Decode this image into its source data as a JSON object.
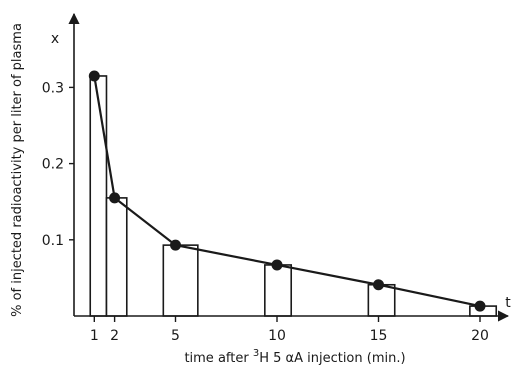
{
  "chart_data": {
    "type": "bar",
    "title": "",
    "xlabel_parts": {
      "before": "time after ",
      "superscript": "3",
      "after": "H 5 αA injection (min.)"
    },
    "ylabel": "% of injected radioactivity per liter of plasma",
    "x_axis_letter": "t",
    "y_axis_letter": "x",
    "x_ticks": [
      1,
      2,
      5,
      10,
      15,
      20
    ],
    "x_tick_labels": [
      "1",
      "2",
      "5",
      "10",
      "15",
      "20"
    ],
    "y_ticks": [
      0.1,
      0.2,
      0.3
    ],
    "y_tick_labels": [
      "0.1",
      "0.2",
      "0.3"
    ],
    "xlim": [
      0,
      22.5
    ],
    "ylim": [
      0,
      0.36
    ],
    "bars": [
      {
        "x_start": 0.8,
        "x_end": 1.6,
        "value": 0.315
      },
      {
        "x_start": 1.6,
        "x_end": 2.6,
        "value": 0.155
      },
      {
        "x_start": 4.4,
        "x_end": 6.1,
        "value": 0.093
      },
      {
        "x_start": 9.4,
        "x_end": 10.7,
        "value": 0.067
      },
      {
        "x_start": 14.5,
        "x_end": 15.8,
        "value": 0.041
      },
      {
        "x_start": 19.5,
        "x_end": 20.8,
        "value": 0.013
      }
    ],
    "series": [
      {
        "x": [
          1,
          2,
          5,
          10,
          15,
          20
        ],
        "values": [
          0.315,
          0.155,
          0.093,
          0.067,
          0.041,
          0.013
        ]
      }
    ],
    "grid": false,
    "legend": "none",
    "colors": {
      "ink": "#1a1a1a",
      "bar_fill": "#ffffff"
    }
  }
}
